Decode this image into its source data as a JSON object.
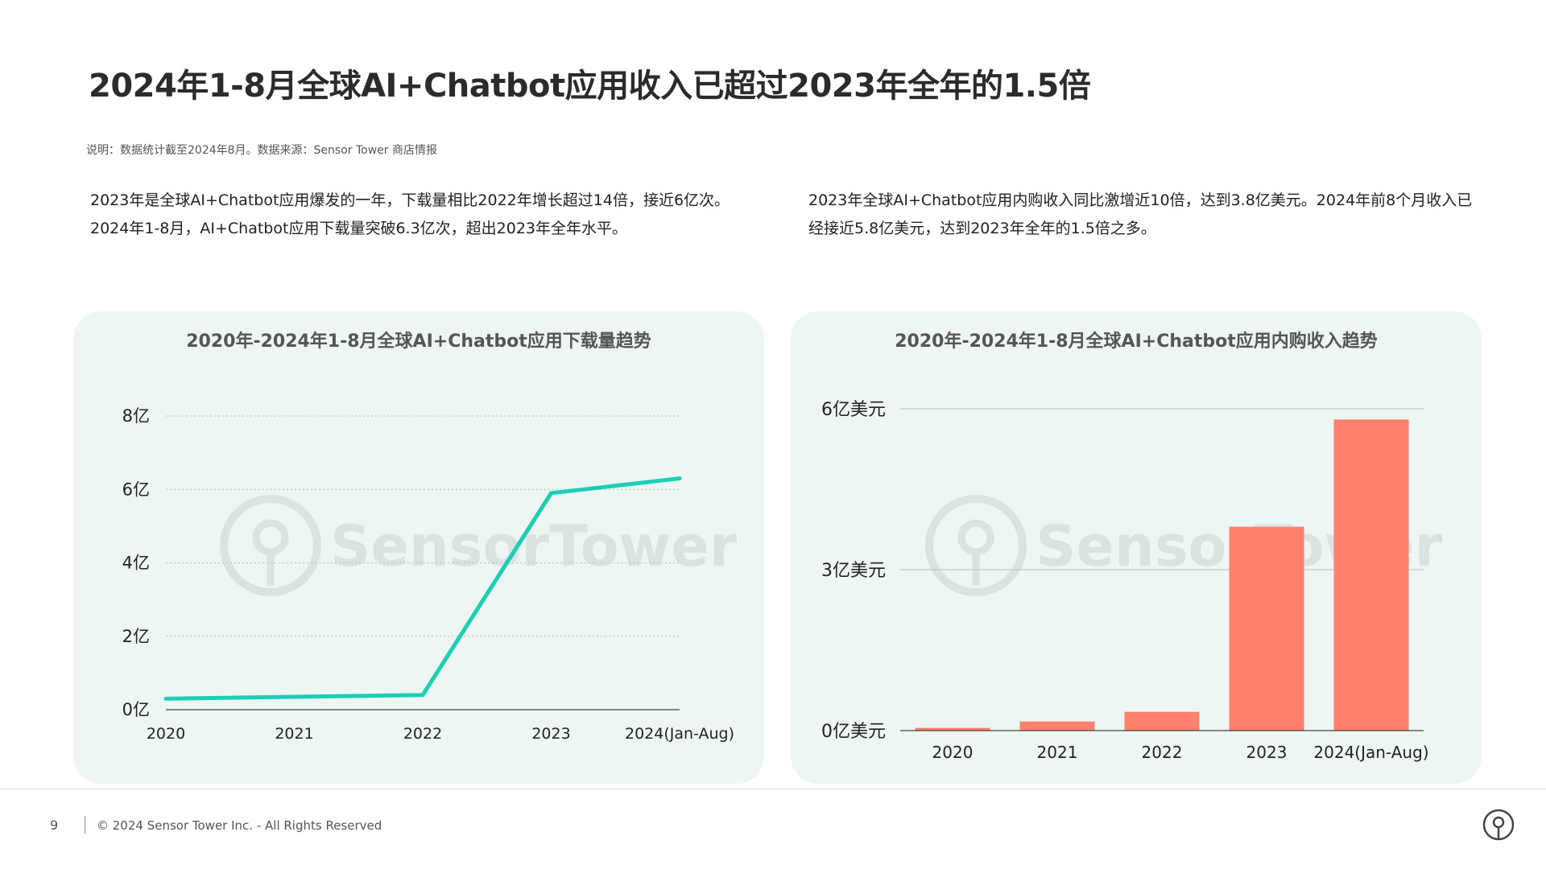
{
  "title": "2024年1-8月全球AI+Chatbot应用收入已超过2023年全年的1.5倍",
  "note": "说明：数据统计截至2024年8月。数据来源：Sensor Tower 商店情报",
  "paragraphs": {
    "left": "2023年是全球AI+Chatbot应用爆发的一年，下载量相比2022年增长超过14倍，接近6亿次。2024年1-8月，AI+Chatbot应用下载量突破6.3亿次，超出2023年全年水平。",
    "right": "2023年全球AI+Chatbot应用内购收入同比激增近10倍，达到3.8亿美元。2024年前8个月收入已经接近5.8亿美元，达到2023年全年的1.5倍之多。"
  },
  "watermark": "SensorTower",
  "footer": {
    "page": "9",
    "copyright": "© 2024 Sensor Tower Inc. - All Rights Reserved"
  },
  "colors": {
    "line": "#1ccfb4",
    "bar": "#ff816b",
    "panel": "#edf6f3"
  },
  "chart_data": [
    {
      "type": "line",
      "title": "2020年-2024年1-8月全球AI+Chatbot应用下载量趋势",
      "categories": [
        "2020",
        "2021",
        "2022",
        "2023",
        "2024(Jan-Aug)"
      ],
      "series": [
        {
          "values": [
            0.3,
            0.35,
            0.4,
            5.9,
            6.3
          ]
        }
      ],
      "yticks": [
        0,
        2,
        4,
        6,
        8
      ],
      "ytick_labels": [
        "0亿",
        "2亿",
        "4亿",
        "6亿",
        "8亿"
      ],
      "ylim": [
        0,
        8
      ],
      "grid": true,
      "legend": "none"
    },
    {
      "type": "bar",
      "title": "2020年-2024年1-8月全球AI+Chatbot应用内购收入趋势",
      "categories": [
        "2020",
        "2021",
        "2022",
        "2023",
        "2024(Jan-Aug)"
      ],
      "values": [
        0.05,
        0.17,
        0.35,
        3.8,
        5.8
      ],
      "yticks": [
        0,
        3,
        6
      ],
      "ytick_labels": [
        "0亿美元",
        "3亿美元",
        "6亿美元"
      ],
      "ylim": [
        0,
        6
      ],
      "grid": true,
      "legend": "none"
    }
  ]
}
